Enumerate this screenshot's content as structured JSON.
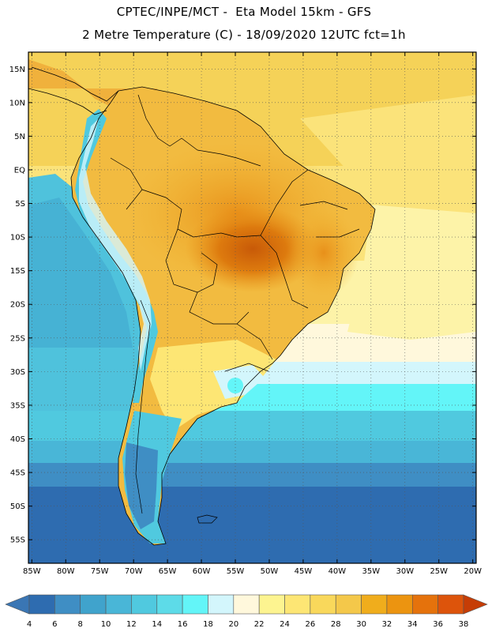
{
  "header": {
    "title_line1": "CPTEC/INPE/MCT -  Eta Model 15km - GFS",
    "title_line2": "2 Metre Temperature (C) - 18/09/2020 12UTC fct=1h"
  },
  "map": {
    "lat_labels": [
      "15N",
      "10N",
      "5N",
      "EQ",
      "5S",
      "10S",
      "15S",
      "20S",
      "25S",
      "30S",
      "35S",
      "40S",
      "45S",
      "50S",
      "55S"
    ],
    "lon_labels": [
      "85W",
      "80W",
      "75W",
      "70W",
      "65W",
      "60W",
      "55W",
      "50W",
      "45W",
      "40W",
      "35W",
      "30W",
      "25W",
      "20W"
    ],
    "lat_values": [
      15,
      10,
      5,
      0,
      -5,
      -10,
      -15,
      -20,
      -25,
      -30,
      -35,
      -40,
      -45,
      -50,
      -55
    ],
    "lon_values": [
      -85,
      -80,
      -75,
      -70,
      -65,
      -60,
      -55,
      -50,
      -45,
      -40,
      -35,
      -30,
      -25,
      -20
    ],
    "extent": {
      "lon_min": -85.5,
      "lon_max": -19.5,
      "lat_min": -58.5,
      "lat_max": 17.5
    },
    "colors": {
      "ocean_tropical": "#f5d258",
      "frame": "#000000",
      "grid": "#555555"
    }
  },
  "legend": {
    "labels": [
      "4",
      "6",
      "8",
      "10",
      "12",
      "14",
      "16",
      "18",
      "20",
      "22",
      "24",
      "26",
      "28",
      "30",
      "32",
      "34",
      "36",
      "38"
    ],
    "colors": [
      "#3a76b4",
      "#2e6cb0",
      "#3f8ec4",
      "#40a3cc",
      "#49b6d7",
      "#50c9df",
      "#5ddbe8",
      "#63f5f8",
      "#d3f6fc",
      "#fff8dc",
      "#fdf490",
      "#fde674",
      "#f9d85b",
      "#f4c84a",
      "#f0ad1c",
      "#ec9410",
      "#e5720c",
      "#dd540b",
      "#c63d06"
    ]
  }
}
